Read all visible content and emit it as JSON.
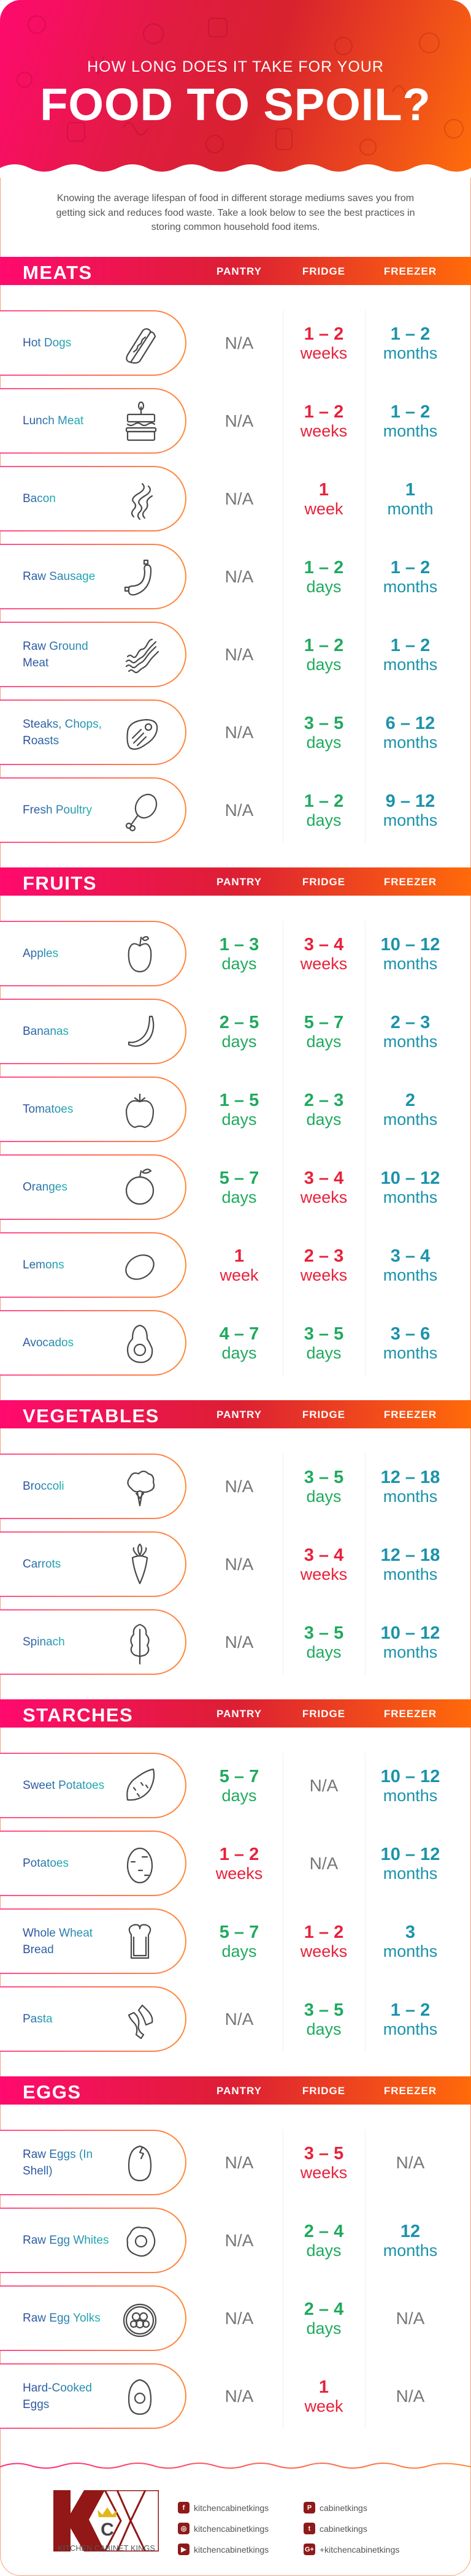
{
  "header": {
    "kicker": "HOW LONG DOES IT TAKE FOR YOUR",
    "title": "FOOD TO SPOIL?",
    "intro": "Knowing the average lifespan of food in different storage mediums saves you from getting sick and reduces food waste. Take a look below to see the best practices in storing common household food items."
  },
  "colors": {
    "days": "#1faa5e",
    "weeks": "#e8213a",
    "months": "#1a93ab",
    "na": "#777777",
    "accent_start": "#ff0a6e",
    "accent_end": "#ff6a0a"
  },
  "columns": [
    "PANTRY",
    "FRIDGE",
    "FREEZER"
  ],
  "sections": [
    {
      "title": "MEATS",
      "items": [
        {
          "name": "Hot Dogs",
          "icon": "hot-dog",
          "values": [
            {
              "na": "N/A"
            },
            {
              "num": "1 – 2",
              "unit": "weeks"
            },
            {
              "num": "1 – 2",
              "unit": "months"
            }
          ]
        },
        {
          "name": "Lunch Meat",
          "icon": "sandwich",
          "values": [
            {
              "na": "N/A"
            },
            {
              "num": "1 – 2",
              "unit": "weeks"
            },
            {
              "num": "1 – 2",
              "unit": "months"
            }
          ]
        },
        {
          "name": "Bacon",
          "icon": "bacon",
          "values": [
            {
              "na": "N/A"
            },
            {
              "num": "1",
              "unit": "week"
            },
            {
              "num": "1",
              "unit": "month"
            }
          ]
        },
        {
          "name": "Raw Sausage",
          "icon": "sausage",
          "values": [
            {
              "na": "N/A"
            },
            {
              "num": "1 – 2",
              "unit": "days"
            },
            {
              "num": "1 – 2",
              "unit": "months"
            }
          ]
        },
        {
          "name": "Raw Ground Meat",
          "icon": "ground-meat",
          "values": [
            {
              "na": "N/A"
            },
            {
              "num": "1 – 2",
              "unit": "days"
            },
            {
              "num": "1 – 2",
              "unit": "months"
            }
          ]
        },
        {
          "name": "Steaks, Chops, Roasts",
          "icon": "steak",
          "values": [
            {
              "na": "N/A"
            },
            {
              "num": "3 – 5",
              "unit": "days"
            },
            {
              "num": "6 – 12",
              "unit": "months"
            }
          ]
        },
        {
          "name": "Fresh Poultry",
          "icon": "drumstick",
          "values": [
            {
              "na": "N/A"
            },
            {
              "num": "1 – 2",
              "unit": "days"
            },
            {
              "num": "9 – 12",
              "unit": "months"
            }
          ]
        }
      ]
    },
    {
      "title": "FRUITS",
      "items": [
        {
          "name": "Apples",
          "icon": "apple",
          "values": [
            {
              "num": "1 – 3",
              "unit": "days"
            },
            {
              "num": "3 – 4",
              "unit": "weeks"
            },
            {
              "num": "10 – 12",
              "unit": "months"
            }
          ]
        },
        {
          "name": "Bananas",
          "icon": "banana",
          "values": [
            {
              "num": "2 – 5",
              "unit": "days"
            },
            {
              "num": "5 – 7",
              "unit": "days"
            },
            {
              "num": "2 – 3",
              "unit": "months"
            }
          ]
        },
        {
          "name": "Tomatoes",
          "icon": "tomato",
          "values": [
            {
              "num": "1 – 5",
              "unit": "days"
            },
            {
              "num": "2 – 3",
              "unit": "days"
            },
            {
              "num": "2",
              "unit": "months"
            }
          ]
        },
        {
          "name": "Oranges",
          "icon": "orange",
          "values": [
            {
              "num": "5 – 7",
              "unit": "days"
            },
            {
              "num": "3 – 4",
              "unit": "weeks"
            },
            {
              "num": "10 – 12",
              "unit": "months"
            }
          ]
        },
        {
          "name": "Lemons",
          "icon": "lemon",
          "values": [
            {
              "num": "1",
              "unit": "week"
            },
            {
              "num": "2 – 3",
              "unit": "weeks"
            },
            {
              "num": "3 – 4",
              "unit": "months"
            }
          ]
        },
        {
          "name": "Avocados",
          "icon": "avocado",
          "values": [
            {
              "num": "4 – 7",
              "unit": "days"
            },
            {
              "num": "3 – 5",
              "unit": "days"
            },
            {
              "num": "3 – 6",
              "unit": "months"
            }
          ]
        }
      ]
    },
    {
      "title": "VEGETABLES",
      "items": [
        {
          "name": "Broccoli",
          "icon": "broccoli",
          "values": [
            {
              "na": "N/A"
            },
            {
              "num": "3 – 5",
              "unit": "days"
            },
            {
              "num": "12 – 18",
              "unit": "months"
            }
          ]
        },
        {
          "name": "Carrots",
          "icon": "carrot",
          "values": [
            {
              "na": "N/A"
            },
            {
              "num": "3 – 4",
              "unit": "weeks"
            },
            {
              "num": "12 – 18",
              "unit": "months"
            }
          ]
        },
        {
          "name": "Spinach",
          "icon": "spinach-leaf",
          "values": [
            {
              "na": "N/A"
            },
            {
              "num": "3 – 5",
              "unit": "days"
            },
            {
              "num": "10 – 12",
              "unit": "months"
            }
          ]
        }
      ]
    },
    {
      "title": "STARCHES",
      "items": [
        {
          "name": "Sweet Potatoes",
          "icon": "sweet-potato",
          "values": [
            {
              "num": "5 – 7",
              "unit": "days"
            },
            {
              "na": "N/A"
            },
            {
              "num": "10 – 12",
              "unit": "months"
            }
          ]
        },
        {
          "name": "Potatoes",
          "icon": "potato",
          "values": [
            {
              "num": "1 – 2",
              "unit": "weeks"
            },
            {
              "na": "N/A"
            },
            {
              "num": "10 – 12",
              "unit": "months"
            }
          ]
        },
        {
          "name": "Whole Wheat Bread",
          "icon": "bread",
          "values": [
            {
              "num": "5 – 7",
              "unit": "days"
            },
            {
              "num": "1 – 2",
              "unit": "weeks"
            },
            {
              "num": "3",
              "unit": "months"
            }
          ]
        },
        {
          "name": "Pasta",
          "icon": "pasta",
          "values": [
            {
              "na": "N/A"
            },
            {
              "num": "3 – 5",
              "unit": "days"
            },
            {
              "num": "1 – 2",
              "unit": "months"
            }
          ]
        }
      ]
    },
    {
      "title": "EGGS",
      "items": [
        {
          "name": "Raw Eggs (In Shell)",
          "icon": "egg",
          "values": [
            {
              "na": "N/A"
            },
            {
              "num": "3 – 5",
              "unit": "weeks"
            },
            {
              "na": "N/A"
            }
          ]
        },
        {
          "name": "Raw Egg Whites",
          "icon": "fried-egg",
          "values": [
            {
              "na": "N/A"
            },
            {
              "num": "2 – 4",
              "unit": "days"
            },
            {
              "num": "12",
              "unit": "months"
            }
          ]
        },
        {
          "name": "Raw Egg Yolks",
          "icon": "yolks-bowl",
          "values": [
            {
              "na": "N/A"
            },
            {
              "num": "2 – 4",
              "unit": "days"
            },
            {
              "na": "N/A"
            }
          ]
        },
        {
          "name": "Hard-Cooked Eggs",
          "icon": "boiled-egg",
          "values": [
            {
              "na": "N/A"
            },
            {
              "num": "1",
              "unit": "week"
            },
            {
              "na": "N/A"
            }
          ]
        }
      ]
    }
  ],
  "footer": {
    "brand": "KITCHEN CABINET KINGS",
    "logo_letters": "KCK",
    "social": [
      {
        "icon": "facebook-icon",
        "glyph": "f",
        "handle": "kitchencabinetkings"
      },
      {
        "icon": "instagram-icon",
        "glyph": "◎",
        "handle": "kitchencabinetkings"
      },
      {
        "icon": "youtube-icon",
        "glyph": "▶",
        "handle": "kitchencabinetkings"
      },
      {
        "icon": "pinterest-icon",
        "glyph": "P",
        "handle": "cabinetkings"
      },
      {
        "icon": "twitter-icon",
        "glyph": "t",
        "handle": "cabinetkings"
      },
      {
        "icon": "google-plus-icon",
        "glyph": "G+",
        "handle": "+kitchencabinetkings"
      }
    ]
  }
}
